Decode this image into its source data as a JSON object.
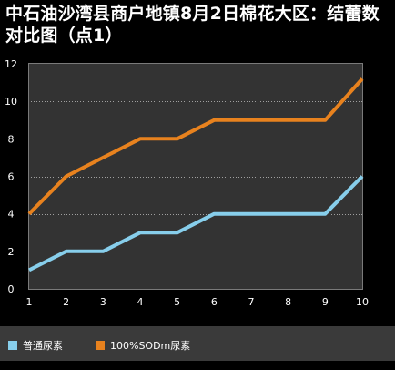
{
  "chart_data": {
    "type": "line",
    "title": "中石油沙湾县商户地镇8月2日棉花大区：结蕾数对比图（点1）",
    "x": [
      1,
      2,
      3,
      4,
      5,
      6,
      7,
      8,
      9,
      10
    ],
    "xlim": [
      1,
      10
    ],
    "ylim": [
      0,
      12
    ],
    "yticks": [
      0,
      2,
      4,
      6,
      8,
      10,
      12
    ],
    "grid": true,
    "legend_position": "bottom",
    "series": [
      {
        "name": "普通尿素",
        "color": "#87ceeb",
        "values": [
          1,
          2,
          2,
          3,
          3,
          4,
          4,
          4,
          4,
          6
        ]
      },
      {
        "name": "100%SODm尿素",
        "color": "#e8821e",
        "values": [
          4,
          6,
          7,
          8,
          8,
          9,
          9,
          9,
          9,
          11.2
        ]
      }
    ]
  }
}
